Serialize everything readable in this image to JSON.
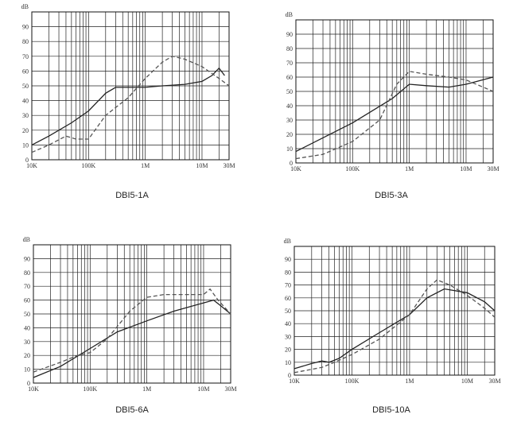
{
  "chart_data": [
    {
      "type": "line",
      "caption": "DBI5-1A",
      "ylabel": "dB",
      "ylim": [
        0,
        100
      ],
      "y_ticks": [
        "0",
        "10",
        "20",
        "30",
        "40",
        "50",
        "60",
        "70",
        "80",
        "90"
      ],
      "x_scale": "log",
      "x_ticks": [
        "10K",
        "100K",
        "1M",
        "10M",
        "30M"
      ],
      "xlim_hz": [
        10000,
        30000000
      ],
      "series": [
        {
          "style": "solid",
          "x": [
            10000,
            20000,
            50000,
            100000,
            200000,
            300000,
            500000,
            1000000,
            2000000,
            5000000,
            10000000,
            15000000,
            20000000,
            25000000
          ],
          "y": [
            10,
            16,
            25,
            33,
            45,
            49,
            49,
            49,
            50,
            51,
            53,
            57,
            62,
            57
          ]
        },
        {
          "style": "dashed",
          "x": [
            10000,
            20000,
            40000,
            60000,
            100000,
            200000,
            500000,
            1000000,
            2000000,
            3000000,
            5000000,
            10000000,
            20000000,
            30000000
          ],
          "y": [
            5,
            10,
            16,
            14,
            14,
            30,
            42,
            55,
            66,
            70,
            68,
            63,
            55,
            50
          ]
        }
      ]
    },
    {
      "type": "line",
      "caption": "DBI5-3A",
      "ylabel": "dB",
      "ylim": [
        0,
        100
      ],
      "y_ticks": [
        "0",
        "10",
        "20",
        "30",
        "40",
        "50",
        "60",
        "70",
        "80",
        "90"
      ],
      "x_scale": "log",
      "x_ticks": [
        "10K",
        "100K",
        "1M",
        "10M",
        "30M"
      ],
      "xlim_hz": [
        10000,
        30000000
      ],
      "series": [
        {
          "style": "solid",
          "x": [
            10000,
            100000,
            500000,
            1000000,
            2000000,
            5000000,
            10000000,
            30000000
          ],
          "y": [
            8,
            28,
            45,
            55,
            54,
            53,
            55,
            60
          ]
        },
        {
          "style": "dashed",
          "x": [
            10000,
            30000,
            100000,
            300000,
            600000,
            1000000,
            2000000,
            5000000,
            10000000,
            30000000
          ],
          "y": [
            3,
            6,
            15,
            30,
            55,
            64,
            62,
            60,
            58,
            50
          ]
        }
      ]
    },
    {
      "type": "line",
      "caption": "DBI5-6A",
      "ylabel": "dB",
      "ylim": [
        0,
        100
      ],
      "y_ticks": [
        "0",
        "10",
        "20",
        "30",
        "40",
        "50",
        "60",
        "70",
        "80",
        "90"
      ],
      "x_scale": "log",
      "x_ticks": [
        "10K",
        "100K",
        "1M",
        "10M",
        "30M"
      ],
      "xlim_hz": [
        10000,
        30000000
      ],
      "series": [
        {
          "style": "solid",
          "x": [
            10000,
            30000,
            100000,
            300000,
            1000000,
            3000000,
            10000000,
            15000000,
            20000000,
            30000000
          ],
          "y": [
            4,
            12,
            25,
            37,
            45,
            52,
            58,
            60,
            56,
            50
          ]
        },
        {
          "style": "dashed",
          "x": [
            10000,
            30000,
            60000,
            100000,
            200000,
            500000,
            1000000,
            2000000,
            5000000,
            10000000,
            13000000,
            18000000,
            30000000
          ],
          "y": [
            8,
            15,
            20,
            22,
            32,
            52,
            62,
            64,
            64,
            64,
            68,
            60,
            50
          ]
        }
      ]
    },
    {
      "type": "line",
      "caption": "DBI5-10A",
      "ylabel": "dB",
      "ylim": [
        0,
        100
      ],
      "y_ticks": [
        "0",
        "10",
        "20",
        "30",
        "40",
        "50",
        "60",
        "70",
        "80",
        "90"
      ],
      "x_scale": "log",
      "x_ticks": [
        "10K",
        "100K",
        "1M",
        "10M",
        "30M"
      ],
      "xlim_hz": [
        10000,
        30000000
      ],
      "series": [
        {
          "style": "solid",
          "x": [
            10000,
            20000,
            30000,
            40000,
            60000,
            100000,
            300000,
            1000000,
            2000000,
            4000000,
            10000000,
            20000000,
            30000000
          ],
          "y": [
            5,
            9,
            11,
            10,
            13,
            20,
            33,
            47,
            60,
            67,
            64,
            57,
            50
          ]
        },
        {
          "style": "dashed",
          "x": [
            10000,
            30000,
            50000,
            100000,
            300000,
            1000000,
            2000000,
            3000000,
            5000000,
            10000000,
            20000000,
            30000000
          ],
          "y": [
            2,
            6,
            10,
            16,
            28,
            47,
            67,
            74,
            70,
            62,
            52,
            45
          ]
        }
      ]
    }
  ]
}
